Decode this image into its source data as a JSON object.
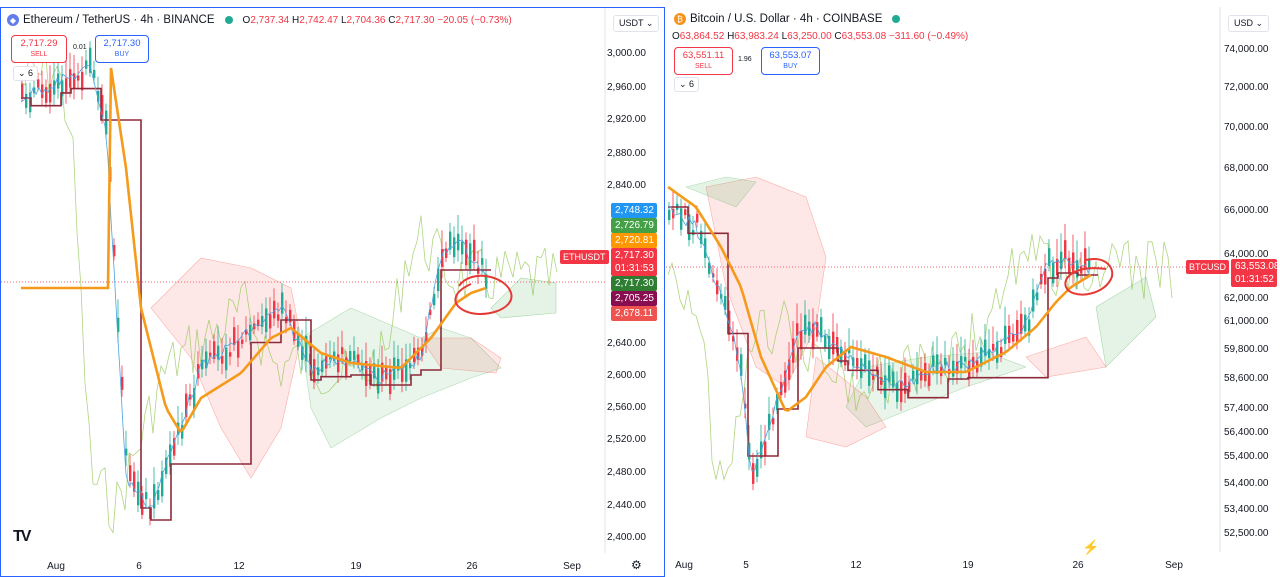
{
  "left": {
    "symbol": "Ethereum / TetherUS · 4h · BINANCE",
    "ohlc": {
      "o": "2,737.34",
      "h": "2,742.47",
      "l": "2,704.36",
      "c": "2,717.30",
      "chg": "−20.05 (−0.73%)"
    },
    "sell": {
      "price": "2,717.29",
      "label": "SELL"
    },
    "buy": {
      "price": "2,717.30",
      "label": "BUY"
    },
    "spread": "0.01",
    "collapse": "6",
    "currency": "USDT",
    "symbol_tag": "ETHUSDT",
    "yticks": [
      "3,000.00",
      "2,960.00",
      "2,920.00",
      "2,880.00",
      "2,840.00",
      "2,640.00",
      "2,600.00",
      "2,560.00",
      "2,520.00",
      "2,480.00",
      "2,440.00",
      "2,400.00"
    ],
    "price_tags": [
      {
        "text": "2,748.32",
        "color": "#2196f3"
      },
      {
        "text": "2,726.79",
        "color": "#43a047"
      },
      {
        "text": "2,720.81",
        "color": "#ff9800"
      },
      {
        "text": "2,717.30",
        "color": "#f23645"
      },
      {
        "text": "01:31:53",
        "color": "#f23645"
      },
      {
        "text": "2,717.30",
        "color": "#2e7d32"
      },
      {
        "text": "2,705.25",
        "color": "#880e4f"
      },
      {
        "text": "2,678.11",
        "color": "#ef5350"
      }
    ],
    "xticks": [
      "Aug",
      "6",
      "12",
      "19",
      "26",
      "Sep"
    ],
    "logo": "TV"
  },
  "right": {
    "symbol": "Bitcoin / U.S. Dollar · 4h · COINBASE",
    "ohlc": {
      "o": "63,864.52",
      "h": "63,983.24",
      "l": "63,250.00",
      "c": "63,553.08",
      "chg": "−311.60 (−0.49%)"
    },
    "sell": {
      "price": "63,551.11",
      "label": "SELL"
    },
    "buy": {
      "price": "63,553.07",
      "label": "BUY"
    },
    "spread": "1.96",
    "collapse": "6",
    "currency": "USD",
    "symbol_tag": "BTCUSD",
    "yticks": [
      "74,000.00",
      "72,000.00",
      "70,000.00",
      "68,000.00",
      "66,000.00",
      "64,000.00",
      "62,000.00",
      "61,000.00",
      "59,800.00",
      "58,600.00",
      "57,400.00",
      "56,400.00",
      "55,400.00",
      "54,400.00",
      "53,400.00",
      "52,500.00"
    ],
    "price_tags": [
      {
        "text": "63,553.08",
        "color": "#f23645"
      },
      {
        "text": "01:31:52",
        "color": "#f23645"
      }
    ],
    "xticks": [
      "Aug",
      "5",
      "12",
      "19",
      "26",
      "Sep"
    ]
  }
}
